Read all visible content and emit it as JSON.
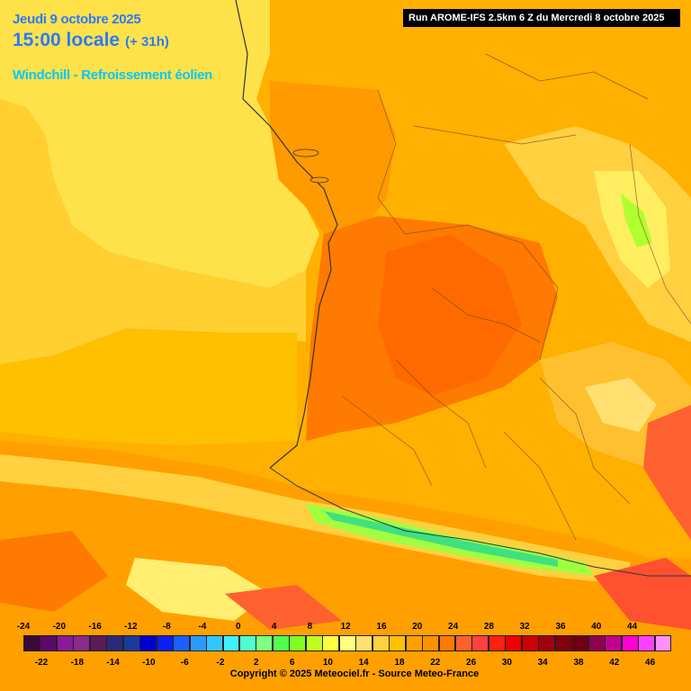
{
  "header": {
    "date": "Jeudi 9 octobre 2025",
    "time": "15:00 locale",
    "lead": "(+ 31h)",
    "parameter": "Windchill - Refroissement éolien"
  },
  "run_info": "Run AROME-IFS 2.5km 6 Z du Mercredi 8 octobre 2025",
  "legend": {
    "top_labels": [
      "-24",
      "-20",
      "-16",
      "-12",
      "-8",
      "-4",
      "0",
      "4",
      "8",
      "12",
      "16",
      "20",
      "24",
      "28",
      "32",
      "36",
      "40",
      "44"
    ],
    "bottom_labels": [
      "-22",
      "-18",
      "-14",
      "-10",
      "-6",
      "-2",
      "2",
      "6",
      "10",
      "14",
      "18",
      "22",
      "26",
      "30",
      "34",
      "38",
      "42",
      "46"
    ],
    "colors": [
      "#3a0a3a",
      "#5a0a6a",
      "#8a1a9a",
      "#8a2a8a",
      "#5a1a5a",
      "#2a2a7a",
      "#1a3aa0",
      "#0000d0",
      "#0a20f0",
      "#1a60ff",
      "#2a9aff",
      "#30c8ff",
      "#40f0ff",
      "#50ffd0",
      "#80ff80",
      "#50ff50",
      "#80ff20",
      "#c0ff20",
      "#ffff40",
      "#ffff80",
      "#ffe070",
      "#ffd040",
      "#ffc000",
      "#ffa000",
      "#ff9000",
      "#ff7a00",
      "#ff6030",
      "#ff4040",
      "#ff2010",
      "#ee0000",
      "#cc0000",
      "#a00010",
      "#800010",
      "#700010",
      "#900050",
      "#c00090",
      "#ff00d0",
      "#ff40ff",
      "#ff90ff"
    ]
  },
  "copyright": "Copyright © 2025 Meteociel.fr - Source Meteo-France"
}
